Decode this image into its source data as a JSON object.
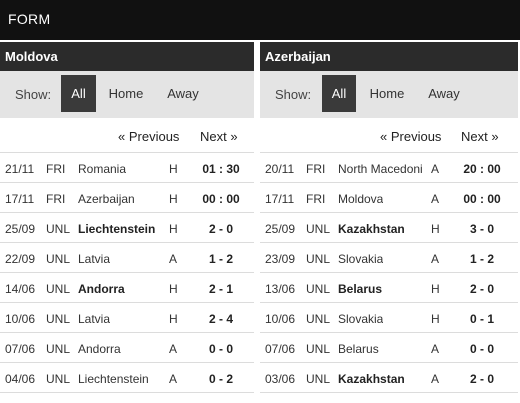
{
  "header": {
    "title": "FORM"
  },
  "filter": {
    "show_label": "Show:",
    "options": [
      "All",
      "Home",
      "Away"
    ],
    "active": "All"
  },
  "pager": {
    "previous": "« Previous",
    "next": "Next »"
  },
  "teams": [
    {
      "name": "Moldova",
      "matches": [
        {
          "date": "21/11",
          "comp": "FRI",
          "opponent": "Romania",
          "bold": false,
          "venue": "H",
          "score": "01 : 30"
        },
        {
          "date": "17/11",
          "comp": "FRI",
          "opponent": "Azerbaijan",
          "bold": false,
          "venue": "H",
          "score": "00 : 00"
        },
        {
          "date": "25/09",
          "comp": "UNL",
          "opponent": "Liechtenstein",
          "bold": true,
          "venue": "H",
          "score": "2 - 0"
        },
        {
          "date": "22/09",
          "comp": "UNL",
          "opponent": "Latvia",
          "bold": false,
          "venue": "A",
          "score": "1 - 2"
        },
        {
          "date": "14/06",
          "comp": "UNL",
          "opponent": "Andorra",
          "bold": true,
          "venue": "H",
          "score": "2 - 1"
        },
        {
          "date": "10/06",
          "comp": "UNL",
          "opponent": "Latvia",
          "bold": false,
          "venue": "H",
          "score": "2 - 4"
        },
        {
          "date": "07/06",
          "comp": "UNL",
          "opponent": "Andorra",
          "bold": false,
          "venue": "A",
          "score": "0 - 0"
        },
        {
          "date": "04/06",
          "comp": "UNL",
          "opponent": "Liechtenstein",
          "bold": false,
          "venue": "A",
          "score": "0 - 2"
        }
      ]
    },
    {
      "name": "Azerbaijan",
      "matches": [
        {
          "date": "20/11",
          "comp": "FRI",
          "opponent": "North Macedonia",
          "bold": false,
          "venue": "A",
          "score": "20 : 00"
        },
        {
          "date": "17/11",
          "comp": "FRI",
          "opponent": "Moldova",
          "bold": false,
          "venue": "A",
          "score": "00 : 00"
        },
        {
          "date": "25/09",
          "comp": "UNL",
          "opponent": "Kazakhstan",
          "bold": true,
          "venue": "H",
          "score": "3 - 0"
        },
        {
          "date": "23/09",
          "comp": "UNL",
          "opponent": "Slovakia",
          "bold": false,
          "venue": "A",
          "score": "1 - 2"
        },
        {
          "date": "13/06",
          "comp": "UNL",
          "opponent": "Belarus",
          "bold": true,
          "venue": "H",
          "score": "2 - 0"
        },
        {
          "date": "10/06",
          "comp": "UNL",
          "opponent": "Slovakia",
          "bold": false,
          "venue": "H",
          "score": "0 - 1"
        },
        {
          "date": "07/06",
          "comp": "UNL",
          "opponent": "Belarus",
          "bold": false,
          "venue": "A",
          "score": "0 - 0"
        },
        {
          "date": "03/06",
          "comp": "UNL",
          "opponent": "Kazakhstan",
          "bold": true,
          "venue": "A",
          "score": "2 - 0"
        }
      ]
    }
  ]
}
